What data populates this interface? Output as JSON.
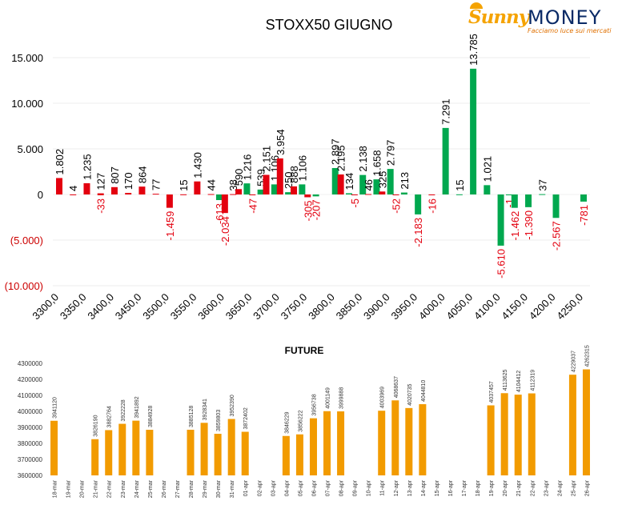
{
  "logo": {
    "brand_part1": "Sunny",
    "brand_part2": "MONEY",
    "slogan": "Facciamo luce sui mercati"
  },
  "chart_data": [
    {
      "type": "bar",
      "title": "STOXX50 GIUGNO",
      "ylim": [
        -10000,
        15000
      ],
      "yticks": [
        -10000,
        -5000,
        0,
        5000,
        10000,
        15000
      ],
      "ytick_labels": [
        "(10.000)",
        "(5.000)",
        "0",
        "5.000",
        "10.000",
        "15.000"
      ],
      "grid": true,
      "xlim": [
        3300,
        4250
      ],
      "xticks": [
        3300,
        3350,
        3400,
        3450,
        3500,
        3550,
        3600,
        3650,
        3700,
        3750,
        3800,
        3850,
        3900,
        3950,
        4000,
        4050,
        4100,
        4150,
        4200,
        4250
      ],
      "xtick_labels": [
        "3300,0",
        "3350,0",
        "3400,0",
        "3450,0",
        "3500,0",
        "3550,0",
        "3600,0",
        "3650,0",
        "3700,0",
        "3750,0",
        "3800,0",
        "3850,0",
        "3900,0",
        "3950,0",
        "4000,0",
        "4050,0",
        "4100,0",
        "4150,0",
        "4200,0",
        "4250,0"
      ],
      "colors": {
        "red": "#e3000f",
        "green": "#00a84f",
        "positive_label": "#000000",
        "negative_label": "#e3000f",
        "negative_tick": "#cc0000"
      },
      "bars": [
        {
          "x": 3300,
          "value": 1802,
          "label": "1.802",
          "color": "red"
        },
        {
          "x": 3325,
          "value": 4,
          "label": "4",
          "color": "red"
        },
        {
          "x": 3350,
          "value": 1235,
          "label": "1.235",
          "color": "red"
        },
        {
          "x": 3375,
          "value": 127,
          "label": "127",
          "color": "red"
        },
        {
          "x": 3375,
          "value": -33,
          "label": "-33",
          "color": "red"
        },
        {
          "x": 3400,
          "value": 807,
          "label": "807",
          "color": "red"
        },
        {
          "x": 3425,
          "value": 170,
          "label": "170",
          "color": "red"
        },
        {
          "x": 3450,
          "value": 864,
          "label": "864",
          "color": "red"
        },
        {
          "x": 3475,
          "value": 77,
          "label": "77",
          "color": "red"
        },
        {
          "x": 3500,
          "value": -1459,
          "label": "-1.459",
          "color": "red"
        },
        {
          "x": 3525,
          "value": 15,
          "label": "15",
          "color": "red"
        },
        {
          "x": 3550,
          "value": 1430,
          "label": "1.430",
          "color": "red"
        },
        {
          "x": 3575,
          "value": 44,
          "label": "44",
          "color": "red"
        },
        {
          "x": 3590,
          "value": -613,
          "label": "-613",
          "color": "green"
        },
        {
          "x": 3600,
          "value": -2034,
          "label": "-2.034",
          "color": "red"
        },
        {
          "x": 3615,
          "value": 38,
          "label": "38",
          "color": "red"
        },
        {
          "x": 3625,
          "value": 590,
          "label": "590",
          "color": "red"
        },
        {
          "x": 3640,
          "value": 1216,
          "label": "1.216",
          "color": "green"
        },
        {
          "x": 3650,
          "value": -47,
          "label": "-47",
          "color": "red"
        },
        {
          "x": 3665,
          "value": 539,
          "label": "539",
          "color": "green"
        },
        {
          "x": 3675,
          "value": 2151,
          "label": "2.151",
          "color": "red"
        },
        {
          "x": 3690,
          "value": 1106,
          "label": "1.106",
          "color": "green"
        },
        {
          "x": 3700,
          "value": 3954,
          "label": "3.954",
          "color": "red"
        },
        {
          "x": 3715,
          "value": 250,
          "label": "250",
          "color": "green"
        },
        {
          "x": 3725,
          "value": 888,
          "label": "888",
          "color": "red"
        },
        {
          "x": 3740,
          "value": 1106,
          "label": "1.106",
          "color": "green"
        },
        {
          "x": 3750,
          "value": -305,
          "label": "-305",
          "color": "red"
        },
        {
          "x": 3765,
          "value": -207,
          "label": "-207",
          "color": "green"
        },
        {
          "x": 3800,
          "value": 2897,
          "label": "2.897",
          "color": "green"
        },
        {
          "x": 3810,
          "value": 2195,
          "label": "2.195",
          "color": "red"
        },
        {
          "x": 3825,
          "value": 134,
          "label": "134",
          "color": "green"
        },
        {
          "x": 3835,
          "value": -5,
          "label": "-5",
          "color": "red"
        },
        {
          "x": 3850,
          "value": 2138,
          "label": "2.138",
          "color": "green"
        },
        {
          "x": 3860,
          "value": 46,
          "label": "46",
          "color": "red"
        },
        {
          "x": 3875,
          "value": 1658,
          "label": "1.658",
          "color": "green"
        },
        {
          "x": 3885,
          "value": 325,
          "label": "325",
          "color": "red"
        },
        {
          "x": 3900,
          "value": 2797,
          "label": "2.797",
          "color": "green"
        },
        {
          "x": 3910,
          "value": -52,
          "label": "-52",
          "color": "red"
        },
        {
          "x": 3925,
          "value": 213,
          "label": "213",
          "color": "green"
        },
        {
          "x": 3950,
          "value": -2183,
          "label": "-2.183",
          "color": "green"
        },
        {
          "x": 3975,
          "value": -16,
          "label": "-16",
          "color": "red"
        },
        {
          "x": 4000,
          "value": 7291,
          "label": "7.291",
          "color": "green"
        },
        {
          "x": 4025,
          "value": 15,
          "label": "15",
          "color": "green"
        },
        {
          "x": 4050,
          "value": 13785,
          "label": "13.785",
          "color": "green"
        },
        {
          "x": 4075,
          "value": 1021,
          "label": "1.021",
          "color": "green"
        },
        {
          "x": 4100,
          "value": -5610,
          "label": "-5.610",
          "color": "green"
        },
        {
          "x": 4115,
          "value": -1,
          "label": "-1",
          "color": "green"
        },
        {
          "x": 4125,
          "value": -1462,
          "label": "-1.462",
          "color": "green"
        },
        {
          "x": 4150,
          "value": -1390,
          "label": "-1.390",
          "color": "green"
        },
        {
          "x": 4175,
          "value": 37,
          "label": "37",
          "color": "green"
        },
        {
          "x": 4200,
          "value": -2567,
          "label": "-2.567",
          "color": "green"
        },
        {
          "x": 4250,
          "value": -781,
          "label": "-781",
          "color": "green"
        }
      ]
    },
    {
      "type": "bar",
      "title": "FUTURE",
      "ylim": [
        3600000,
        4300000
      ],
      "yticks": [
        3600000,
        3700000,
        3800000,
        3900000,
        4000000,
        4100000,
        4200000,
        4300000
      ],
      "color": "#f29b00",
      "categories": [
        "18-mar",
        "19-mar",
        "20-mar",
        "21-mar",
        "22-mar",
        "23-mar",
        "24-mar",
        "25-mar",
        "26-mar",
        "27-mar",
        "28-mar",
        "29-mar",
        "30-mar",
        "31-mar",
        "01-apr",
        "02-apr",
        "03-apr",
        "04-apr",
        "05-apr",
        "06-apr",
        "07-apr",
        "08-apr",
        "09-apr",
        "10-apr",
        "11-apr",
        "12-apr",
        "13-apr",
        "14-apr",
        "15-apr",
        "16-apr",
        "17-apr",
        "18-apr",
        "19-apr",
        "20-apr",
        "21-apr",
        "22-apr",
        "23-apr",
        "24-apr",
        "25-apr",
        "26-apr"
      ],
      "values": [
        3941120,
        null,
        null,
        3826190,
        3882764,
        3922228,
        3941892,
        3884928,
        null,
        null,
        3885128,
        3928341,
        3859803,
        3952390,
        3872402,
        null,
        null,
        3846229,
        3856222,
        3956738,
        4001149,
        3999888,
        null,
        null,
        4003969,
        4068637,
        4020735,
        4044810,
        null,
        null,
        null,
        null,
        4037457,
        4113625,
        4104412,
        4112319,
        null,
        null,
        4229037,
        4262315
      ]
    }
  ]
}
